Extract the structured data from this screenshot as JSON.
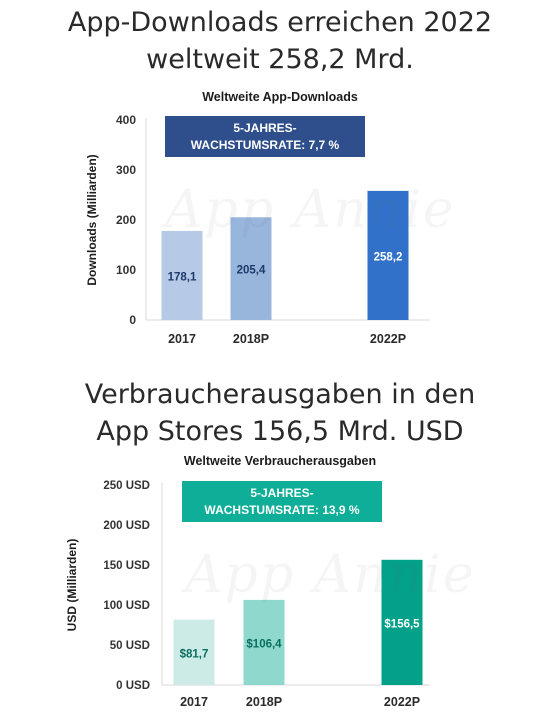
{
  "headline1": {
    "line1": "App-Downloads erreichen 2022",
    "line2": "weltweit 258,2 Mrd."
  },
  "headline2": {
    "line1": "Verbraucherausgaben in den",
    "line2": "App Stores 156,5 Mrd. USD"
  },
  "watermark_text": "App Annie",
  "chart_data": [
    {
      "type": "bar",
      "title": "Weltweite App-Downloads",
      "ylabel": "Downloads (Milliarden)",
      "ylim": [
        0,
        400
      ],
      "yticks": [
        0,
        100,
        200,
        300,
        400
      ],
      "ytick_labels": [
        "0",
        "100",
        "200",
        "300",
        "400"
      ],
      "grid": false,
      "categories": [
        "2017",
        "2018P",
        "2022P"
      ],
      "values": [
        178.1,
        205.4,
        258.2
      ],
      "value_labels": [
        "178,1",
        "205,4",
        "258,2"
      ],
      "bar_colors": [
        "#b6c9e6",
        "#98b5dc",
        "#3171c9"
      ],
      "label_colors": [
        "#1d3a6b",
        "#1d3a6b",
        "#ffffff"
      ],
      "annotation": {
        "line1": "5-JAHRES-",
        "line2": "WACHSTUMSRATE: 7,7 %",
        "color": "#2e4e8c"
      }
    },
    {
      "type": "bar",
      "title": "Weltweite Verbraucherausgaben",
      "ylabel": "USD (Milliarden)",
      "ylim": [
        0,
        250
      ],
      "yticks": [
        0,
        50,
        100,
        150,
        200,
        250
      ],
      "ytick_labels": [
        "0 USD",
        "50 USD",
        "100 USD",
        "150 USD",
        "200 USD",
        "250 USD"
      ],
      "grid": false,
      "categories": [
        "2017",
        "2018P",
        "2022P"
      ],
      "values": [
        81.7,
        106.4,
        156.5
      ],
      "value_labels": [
        "$81,7",
        "$106,4",
        "$156,5"
      ],
      "bar_colors": [
        "#ccebe6",
        "#8ed8cd",
        "#03a08a"
      ],
      "label_colors": [
        "#0a6e5f",
        "#0a6e5f",
        "#ffffff"
      ],
      "annotation": {
        "line1": "5-JAHRES-",
        "line2": "WACHSTUMSRATE: 13,9 %",
        "color": "#0fae98"
      }
    }
  ]
}
